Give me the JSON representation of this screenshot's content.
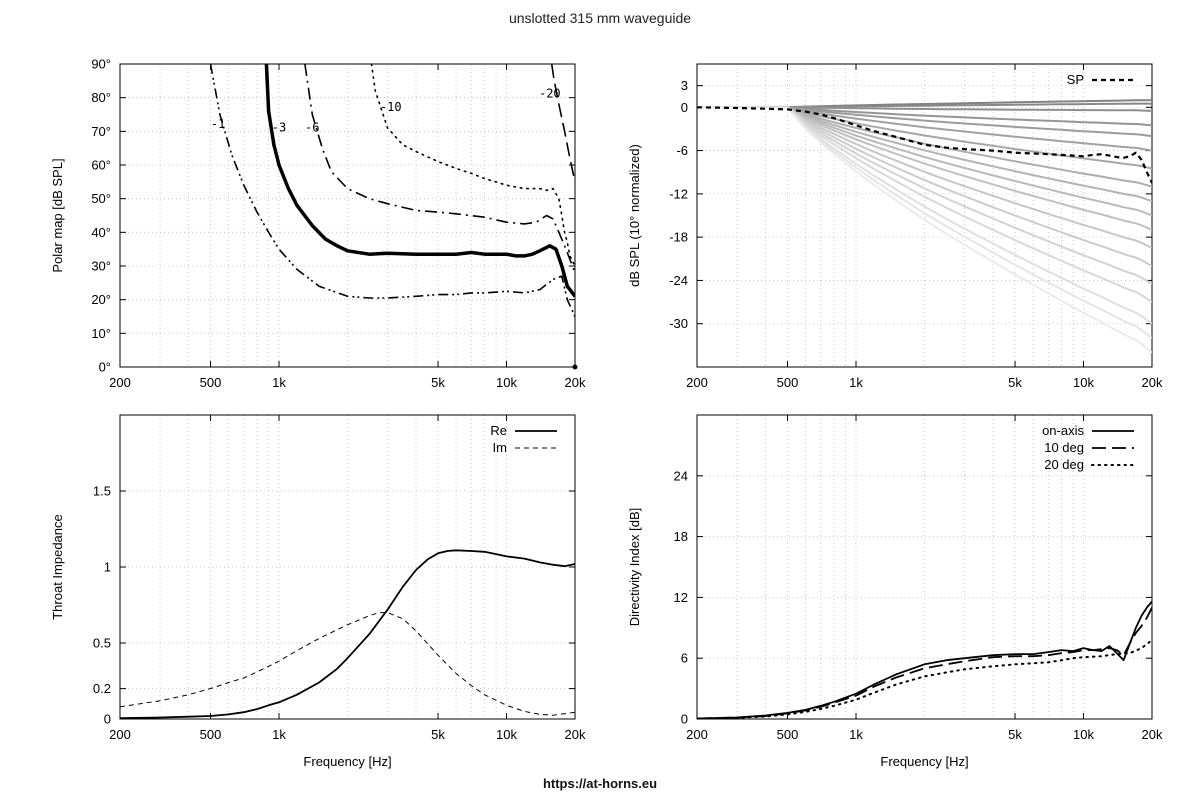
{
  "title": "unslotted 315 mm waveguide",
  "footer": "https://at-horns.eu",
  "colors": {
    "grid": "#bfbfbf",
    "frame": "#000000",
    "sp": "#000000"
  },
  "chart_data": [
    {
      "id": "polar",
      "type": "line",
      "ylabel": "Polar map [dB SPL]",
      "xlabel": "",
      "xscale": "log",
      "xlim": [
        200,
        20000
      ],
      "ylim": [
        0,
        90
      ],
      "xticks": [
        {
          "v": 200,
          "l": "200"
        },
        {
          "v": 500,
          "l": "500"
        },
        {
          "v": 1000,
          "l": "1k"
        },
        {
          "v": 5000,
          "l": "5k"
        },
        {
          "v": 10000,
          "l": "10k"
        },
        {
          "v": 20000,
          "l": "20k"
        }
      ],
      "yticks": [
        {
          "v": 0,
          "l": "0°"
        },
        {
          "v": 10,
          "l": "10°"
        },
        {
          "v": 20,
          "l": "20°"
        },
        {
          "v": 30,
          "l": "30°"
        },
        {
          "v": 40,
          "l": "40°"
        },
        {
          "v": 50,
          "l": "50°"
        },
        {
          "v": 60,
          "l": "60°"
        },
        {
          "v": 70,
          "l": "70°"
        },
        {
          "v": 80,
          "l": "80°"
        },
        {
          "v": 90,
          "l": "90°"
        }
      ],
      "series": [
        {
          "name": "-1",
          "style": "dashdotdot",
          "width": 1.6,
          "label_at": [
            540,
            71
          ],
          "x": [
            500,
            550,
            620,
            700,
            800,
            900,
            1000,
            1200,
            1500,
            2000,
            2500,
            3000,
            4000,
            5000,
            6000,
            7000,
            8000,
            10000,
            12000,
            14000,
            16000,
            17500,
            18500,
            20000
          ],
          "y": [
            90,
            75,
            63,
            54,
            46,
            40,
            35,
            29,
            24,
            21,
            20.5,
            20.5,
            21,
            21.5,
            21.5,
            22,
            22,
            22.5,
            22,
            23,
            26,
            27,
            20,
            15
          ]
        },
        {
          "name": "-3",
          "style": "solid",
          "width": 3.5,
          "label_at": [
            1000,
            70
          ],
          "x": [
            880,
            900,
            950,
            1000,
            1100,
            1200,
            1400,
            1600,
            1800,
            2000,
            2500,
            3000,
            4000,
            5000,
            6000,
            7000,
            8000,
            9000,
            10000,
            11000,
            12000,
            13000,
            14000,
            15500,
            16500,
            17500,
            18500,
            20000
          ],
          "y": [
            90,
            76,
            66,
            60,
            53,
            48,
            42,
            38,
            36,
            34.5,
            33.5,
            33.8,
            33.5,
            33.5,
            33.5,
            34,
            33.5,
            33.5,
            33.5,
            33,
            33,
            33.5,
            34.5,
            36,
            35,
            30,
            24,
            21
          ]
        },
        {
          "name": "-6",
          "style": "dashdot",
          "width": 1.6,
          "label_at": [
            1400,
            70
          ],
          "x": [
            1300,
            1400,
            1550,
            1700,
            2000,
            2500,
            3000,
            4000,
            5000,
            6000,
            8000,
            10000,
            12000,
            13500,
            15000,
            16000,
            17000,
            18000,
            19000,
            20000
          ],
          "y": [
            90,
            75,
            65,
            58,
            53,
            50,
            48.5,
            46.5,
            46,
            45.5,
            44.5,
            43,
            42.5,
            43,
            45,
            44,
            40,
            36,
            32,
            28
          ]
        },
        {
          "name": "-10",
          "style": "dotted",
          "width": 1.6,
          "label_at": [
            3100,
            76
          ],
          "x": [
            2550,
            2650,
            3000,
            3500,
            4000,
            5000,
            6000,
            7000,
            8000,
            10000,
            12000,
            14000,
            15000,
            16000,
            17000,
            17500,
            18000,
            18500,
            19000,
            20000
          ],
          "y": [
            90,
            82,
            71,
            66,
            64,
            61,
            59,
            57.5,
            56,
            54,
            53,
            53,
            52.5,
            53,
            50,
            45,
            40,
            37,
            33,
            30
          ]
        },
        {
          "name": "-20",
          "style": "longdash",
          "width": 1.6,
          "label_at": [
            15500,
            80
          ],
          "x": [
            15800,
            16200,
            17000,
            18000,
            19000,
            20000
          ],
          "y": [
            90,
            85,
            78,
            70,
            62,
            55
          ]
        }
      ],
      "point": {
        "x": 20000,
        "y": 0
      }
    },
    {
      "id": "spl",
      "type": "line",
      "ylabel": "dB SPL (10° normalized)",
      "xlabel": "",
      "xscale": "log",
      "xlim": [
        200,
        20000
      ],
      "ylim": [
        -36,
        6
      ],
      "xticks": [
        {
          "v": 200,
          "l": "200"
        },
        {
          "v": 500,
          "l": "500"
        },
        {
          "v": 1000,
          "l": "1k"
        },
        {
          "v": 5000,
          "l": "5k"
        },
        {
          "v": 10000,
          "l": "10k"
        },
        {
          "v": 20000,
          "l": "20k"
        }
      ],
      "yticks": [
        {
          "v": 3,
          "l": "3"
        },
        {
          "v": 0,
          "l": "0"
        },
        {
          "v": -6,
          "l": "-6"
        },
        {
          "v": -12,
          "l": "-12"
        },
        {
          "v": -18,
          "l": "-18"
        },
        {
          "v": -24,
          "l": "-24"
        },
        {
          "v": -30,
          "l": "-30"
        }
      ],
      "x": [
        200,
        300,
        400,
        500,
        600,
        700,
        800,
        1000,
        1200,
        1500,
        2000,
        2500,
        3000,
        4000,
        5000,
        6000,
        7000,
        8000,
        9000,
        10000,
        11000,
        12000,
        13000,
        14000,
        15000,
        16000,
        17000,
        18000,
        19000,
        20000
      ],
      "series": [
        {
          "name": "SP",
          "style": "dashed",
          "width": 2.2,
          "color": "#000000",
          "y": [
            0,
            -0.1,
            -0.2,
            -0.3,
            -0.6,
            -1.0,
            -1.5,
            -2.5,
            -3.3,
            -4.1,
            -5.2,
            -5.6,
            -5.8,
            -6.0,
            -6.3,
            -6.4,
            -6.5,
            -6.6,
            -6.7,
            -6.8,
            -6.6,
            -6.5,
            -6.7,
            -6.9,
            -7.0,
            -6.8,
            -6.3,
            -7.3,
            -9.0,
            -10.5
          ]
        }
      ],
      "gray_endpoints": [
        1,
        0.5,
        -0.5,
        -2.5,
        -4,
        -6,
        -8.5,
        -11,
        -13,
        -15,
        -17,
        -19.5,
        -22,
        -24.5,
        -27,
        -30,
        -32,
        -34
      ],
      "legend": {
        "label": "SP",
        "position": "top-right"
      }
    },
    {
      "id": "impedance",
      "type": "line",
      "ylabel": "Throat Impedance",
      "xlabel": "Frequency [Hz]",
      "xscale": "log",
      "xlim": [
        200,
        20000
      ],
      "ylim": [
        0,
        2
      ],
      "xticks": [
        {
          "v": 200,
          "l": "200"
        },
        {
          "v": 500,
          "l": "500"
        },
        {
          "v": 1000,
          "l": "1k"
        },
        {
          "v": 5000,
          "l": "5k"
        },
        {
          "v": 10000,
          "l": "10k"
        },
        {
          "v": 20000,
          "l": "20k"
        }
      ],
      "yticks": [
        {
          "v": 0,
          "l": "0"
        },
        {
          "v": 0.2,
          "l": "0.2"
        },
        {
          "v": 0.5,
          "l": "0.5"
        },
        {
          "v": 1,
          "l": "1"
        },
        {
          "v": 1.5,
          "l": "1.5"
        }
      ],
      "series": [
        {
          "name": "Re",
          "style": "solid",
          "width": 1.8,
          "x": [
            200,
            300,
            400,
            500,
            600,
            700,
            800,
            900,
            1000,
            1200,
            1500,
            1800,
            2000,
            2500,
            3000,
            3500,
            4000,
            4500,
            5000,
            5500,
            6000,
            7000,
            8000,
            9000,
            10000,
            12000,
            14000,
            16000,
            18000,
            20000
          ],
          "y": [
            0.005,
            0.01,
            0.015,
            0.02,
            0.03,
            0.045,
            0.065,
            0.09,
            0.11,
            0.16,
            0.24,
            0.33,
            0.4,
            0.56,
            0.72,
            0.87,
            0.98,
            1.05,
            1.09,
            1.105,
            1.11,
            1.105,
            1.1,
            1.085,
            1.07,
            1.055,
            1.03,
            1.015,
            1.005,
            1.02
          ]
        },
        {
          "name": "Im",
          "style": "dashed",
          "width": 1.0,
          "x": [
            200,
            300,
            400,
            500,
            600,
            700,
            800,
            1000,
            1200,
            1500,
            2000,
            2500,
            2750,
            3000,
            3500,
            4000,
            5000,
            6000,
            7000,
            8000,
            10000,
            12000,
            14000,
            16000,
            18000,
            20000
          ],
          "y": [
            0.08,
            0.12,
            0.16,
            0.2,
            0.24,
            0.27,
            0.31,
            0.38,
            0.45,
            0.53,
            0.62,
            0.68,
            0.7,
            0.7,
            0.66,
            0.58,
            0.42,
            0.3,
            0.22,
            0.16,
            0.09,
            0.05,
            0.03,
            0.025,
            0.035,
            0.045
          ]
        }
      ],
      "legend": {
        "labels": [
          "Re",
          "Im"
        ],
        "position": "top-right"
      }
    },
    {
      "id": "di",
      "type": "line",
      "ylabel": "Directivity Index [dB]",
      "xlabel": "Frequency [Hz]",
      "xscale": "log",
      "xlim": [
        200,
        20000
      ],
      "ylim": [
        0,
        30
      ],
      "xticks": [
        {
          "v": 200,
          "l": "200"
        },
        {
          "v": 500,
          "l": "500"
        },
        {
          "v": 1000,
          "l": "1k"
        },
        {
          "v": 5000,
          "l": "5k"
        },
        {
          "v": 10000,
          "l": "10k"
        },
        {
          "v": 20000,
          "l": "20k"
        }
      ],
      "yticks": [
        {
          "v": 0,
          "l": "0"
        },
        {
          "v": 6,
          "l": "6"
        },
        {
          "v": 12,
          "l": "12"
        },
        {
          "v": 18,
          "l": "18"
        },
        {
          "v": 24,
          "l": "24"
        }
      ],
      "series": [
        {
          "name": "on-axis",
          "style": "solid",
          "width": 1.8,
          "x": [
            200,
            300,
            400,
            500,
            600,
            700,
            800,
            1000,
            1200,
            1500,
            2000,
            2500,
            3000,
            4000,
            5000,
            6000,
            7000,
            8000,
            9000,
            10000,
            11000,
            12000,
            13000,
            14000,
            15000,
            16000,
            17000,
            18000,
            19000,
            20000
          ],
          "y": [
            0.05,
            0.15,
            0.35,
            0.6,
            0.9,
            1.3,
            1.7,
            2.5,
            3.4,
            4.4,
            5.4,
            5.8,
            6.0,
            6.3,
            6.4,
            6.4,
            6.6,
            6.8,
            6.7,
            7.0,
            6.8,
            6.7,
            7.2,
            6.5,
            5.8,
            7.5,
            9.0,
            10.2,
            11.0,
            11.6
          ]
        },
        {
          "name": "10 deg",
          "style": "longdash",
          "width": 1.8,
          "x": [
            200,
            300,
            400,
            500,
            600,
            700,
            800,
            1000,
            1200,
            1500,
            2000,
            2500,
            3000,
            4000,
            5000,
            6000,
            7000,
            8000,
            9000,
            10000,
            11000,
            12000,
            13000,
            14000,
            15000,
            16000,
            17000,
            18000,
            19000,
            20000
          ],
          "y": [
            0.05,
            0.15,
            0.3,
            0.55,
            0.85,
            1.2,
            1.6,
            2.3,
            3.2,
            4.1,
            5.0,
            5.4,
            5.7,
            6.1,
            6.2,
            6.2,
            6.3,
            6.5,
            6.6,
            6.8,
            6.8,
            6.9,
            7.0,
            6.8,
            6.3,
            7.5,
            8.5,
            9.2,
            10.0,
            11.0
          ]
        },
        {
          "name": "20 deg",
          "style": "dotted",
          "width": 2.0,
          "x": [
            200,
            300,
            400,
            500,
            600,
            700,
            800,
            1000,
            1200,
            1500,
            2000,
            2500,
            3000,
            4000,
            5000,
            6000,
            7000,
            8000,
            9000,
            10000,
            12000,
            14000,
            16000,
            18000,
            20000
          ],
          "y": [
            0.05,
            0.12,
            0.25,
            0.45,
            0.7,
            1.0,
            1.3,
            1.9,
            2.6,
            3.4,
            4.2,
            4.6,
            4.9,
            5.2,
            5.4,
            5.5,
            5.6,
            5.8,
            6.0,
            6.1,
            6.2,
            6.4,
            6.5,
            7.0,
            7.8
          ]
        }
      ],
      "legend": {
        "labels": [
          "on-axis",
          "10 deg",
          "20 deg"
        ],
        "position": "top-right"
      }
    }
  ]
}
